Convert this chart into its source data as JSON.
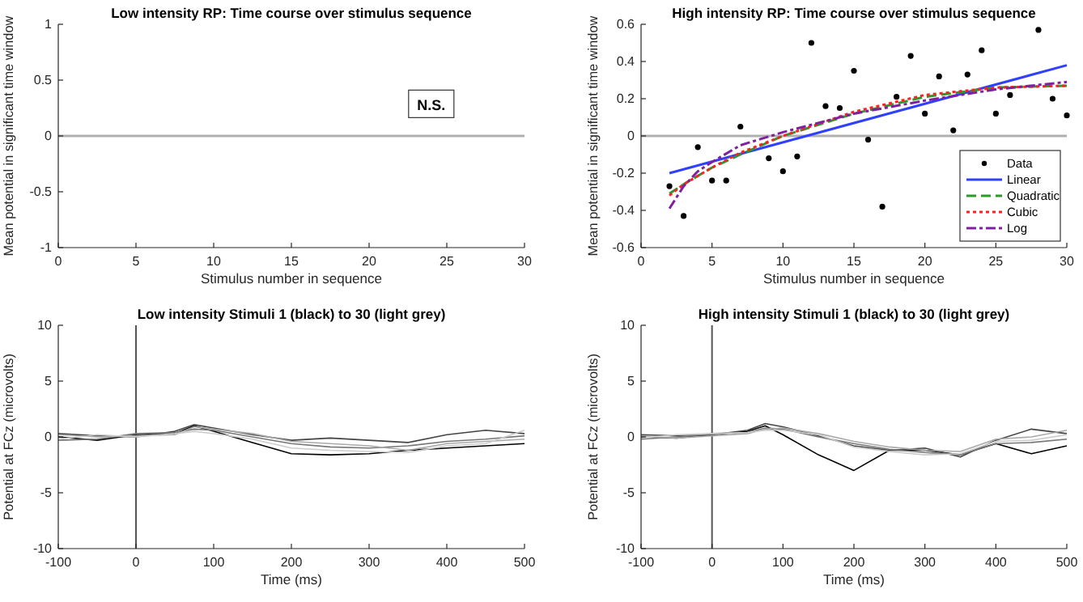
{
  "chart_data": [
    {
      "type": "line",
      "title": "Low intensity RP: Time course over stimulus sequence",
      "xlabel": "Stimulus number in sequence",
      "ylabel": "Mean potential in significant time window",
      "xlim": [
        0,
        30
      ],
      "ylim": [
        -1,
        1
      ],
      "xticks": [
        0,
        5,
        10,
        15,
        20,
        25,
        30
      ],
      "yticks": [
        -1,
        -0.5,
        0,
        0.5,
        1
      ],
      "ref_lines": [
        {
          "axis": "y",
          "value": 0,
          "color": "#b0b0b0"
        }
      ],
      "annotations": [
        "N.S."
      ],
      "legend": false
    },
    {
      "type": "scatter",
      "title": "High intensity RP: Time course over stimulus sequence",
      "xlabel": "Stimulus number in sequence",
      "ylabel": "Mean potential in significant time window",
      "xlim": [
        0,
        30
      ],
      "ylim": [
        -0.6,
        0.6
      ],
      "xticks": [
        0,
        5,
        10,
        15,
        20,
        25,
        30
      ],
      "yticks": [
        -0.6,
        -0.4,
        -0.2,
        0,
        0.2,
        0.4,
        0.6
      ],
      "ref_lines": [
        {
          "axis": "y",
          "value": 0,
          "color": "#b0b0b0"
        }
      ],
      "legend": "bottom right",
      "series": [
        {
          "name": "Data",
          "color": "#000000",
          "marker": "circle",
          "x": [
            2,
            3,
            4,
            5,
            6,
            7,
            9,
            10,
            11,
            12,
            13,
            14,
            15,
            16,
            17,
            18,
            19,
            20,
            21,
            22,
            23,
            24,
            25,
            26,
            28,
            29,
            30
          ],
          "values": [
            -0.27,
            -0.43,
            -0.06,
            -0.24,
            -0.24,
            0.05,
            -0.12,
            -0.19,
            -0.11,
            0.5,
            0.16,
            0.15,
            0.35,
            -0.02,
            -0.38,
            0.21,
            0.43,
            0.12,
            0.32,
            0.03,
            0.33,
            0.46,
            0.12,
            0.22,
            0.57,
            0.2,
            0.11
          ]
        },
        {
          "name": "Linear",
          "type": "line",
          "color": "#3040ff",
          "line_style": "solid",
          "x": [
            2,
            30
          ],
          "values": [
            -0.2,
            0.38
          ]
        },
        {
          "name": "Quadratic",
          "type": "line",
          "color": "#2a9a2a",
          "line_style": "dashed",
          "x": [
            2,
            3,
            5,
            7,
            10,
            15,
            20,
            25,
            30
          ],
          "values": [
            -0.31,
            -0.26,
            -0.17,
            -0.1,
            0,
            0.12,
            0.21,
            0.26,
            0.27
          ]
        },
        {
          "name": "Cubic",
          "type": "line",
          "color": "#ff2020",
          "line_style": "dotted",
          "x": [
            2,
            3,
            5,
            7,
            10,
            15,
            20,
            25,
            30
          ],
          "values": [
            -0.32,
            -0.26,
            -0.17,
            -0.09,
            0,
            0.13,
            0.22,
            0.26,
            0.27
          ]
        },
        {
          "name": "Log",
          "type": "line",
          "color": "#8020a0",
          "line_style": "dashdot",
          "x": [
            2,
            3,
            4,
            5,
            7,
            10,
            15,
            20,
            25,
            30
          ],
          "values": [
            -0.39,
            -0.27,
            -0.19,
            -0.14,
            -0.05,
            0.02,
            0.12,
            0.19,
            0.25,
            0.29
          ]
        }
      ]
    },
    {
      "type": "line",
      "title": "Low intensity Stimuli 1 (black) to 30 (light grey)",
      "xlabel": "Time (ms)",
      "ylabel": "Potential at FCz (microvolts)",
      "xlim": [
        -100,
        500
      ],
      "ylim": [
        -10,
        10
      ],
      "xticks": [
        -100,
        0,
        100,
        200,
        300,
        400,
        500
      ],
      "yticks": [
        -10,
        -5,
        0,
        5,
        10
      ],
      "ref_lines": [
        {
          "axis": "x",
          "value": 0,
          "color": "#555555"
        }
      ],
      "legend": false,
      "x": [
        -100,
        -50,
        0,
        50,
        75,
        100,
        150,
        200,
        250,
        300,
        350,
        400,
        450,
        500
      ],
      "series": [
        {
          "color": "#000000",
          "values": [
            0,
            -0.3,
            0.2,
            0.3,
            1.0,
            0.5,
            -0.5,
            -1.5,
            -1.6,
            -1.5,
            -1.2,
            -1.0,
            -0.8,
            -0.6
          ]
        },
        {
          "color": "#444444",
          "values": [
            0.3,
            0.1,
            0,
            0.5,
            1.1,
            0.8,
            0.2,
            -0.3,
            -0.1,
            -0.3,
            -0.5,
            0.2,
            0.6,
            0.3
          ]
        },
        {
          "color": "#777777",
          "values": [
            -0.3,
            -0.2,
            0.3,
            0.4,
            0.7,
            0.6,
            0.0,
            -0.6,
            -0.9,
            -1.0,
            -0.8,
            -0.4,
            -0.2,
            0.1
          ]
        },
        {
          "color": "#aaaaaa",
          "values": [
            0.2,
            0.0,
            0.1,
            0.2,
            0.9,
            0.7,
            0.3,
            -0.4,
            -0.6,
            -0.8,
            -1.2,
            -0.6,
            -0.4,
            -0.2
          ]
        },
        {
          "color": "#cccccc",
          "values": [
            -0.2,
            0.2,
            0.0,
            0.3,
            0.5,
            0.3,
            -0.2,
            -1.0,
            -1.2,
            -1.3,
            -1.4,
            -0.8,
            -0.6,
            0.6
          ]
        }
      ]
    },
    {
      "type": "line",
      "title": "High intensity Stimuli 1 (black) to 30 (light grey)",
      "xlabel": "Time (ms)",
      "ylabel": "Potential at FCz (microvolts)",
      "xlim": [
        -100,
        500
      ],
      "ylim": [
        -10,
        10
      ],
      "xticks": [
        -100,
        0,
        100,
        200,
        300,
        400,
        500
      ],
      "yticks": [
        -10,
        -5,
        0,
        5,
        10
      ],
      "ref_lines": [
        {
          "axis": "x",
          "value": 0,
          "color": "#555555"
        }
      ],
      "legend": false,
      "x": [
        -100,
        -50,
        0,
        50,
        75,
        100,
        150,
        200,
        250,
        300,
        350,
        400,
        450,
        500
      ],
      "series": [
        {
          "color": "#000000",
          "values": [
            0,
            -0.1,
            0.2,
            0.5,
            1.0,
            0.2,
            -1.6,
            -3.0,
            -1.2,
            -1.2,
            -1.6,
            -0.6,
            -1.5,
            -0.8
          ]
        },
        {
          "color": "#444444",
          "values": [
            0.2,
            0.1,
            0.2,
            0.6,
            1.2,
            0.9,
            0.1,
            -0.8,
            -1.2,
            -1.0,
            -1.8,
            -0.3,
            0.7,
            0.3
          ]
        },
        {
          "color": "#777777",
          "values": [
            -0.2,
            0.0,
            0.3,
            0.4,
            0.8,
            0.7,
            0.0,
            -0.6,
            -1.1,
            -1.4,
            -1.6,
            -0.6,
            -0.5,
            -0.2
          ]
        },
        {
          "color": "#aaaaaa",
          "values": [
            0.1,
            -0.1,
            0.1,
            0.3,
            0.7,
            0.8,
            0.3,
            -0.4,
            -0.9,
            -1.2,
            -1.3,
            -0.2,
            0.0,
            0.6
          ]
        },
        {
          "color": "#cccccc",
          "values": [
            -0.1,
            0.2,
            0.3,
            0.4,
            0.6,
            0.6,
            0.2,
            -0.9,
            -1.3,
            -1.6,
            -1.5,
            -0.4,
            -0.3,
            0.2
          ]
        }
      ]
    }
  ]
}
